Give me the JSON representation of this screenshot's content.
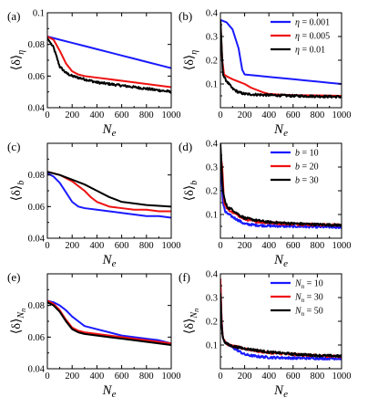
{
  "chart_data": [
    {
      "panel": "(a)",
      "type": "line",
      "ylabel": "⟨δ⟩",
      "ysub": "η",
      "xlabel": "Ne",
      "xlim": [
        0,
        1000
      ],
      "ylim": [
        0.04,
        0.1
      ],
      "xticks": [
        "0",
        "200",
        "400",
        "600",
        "800",
        "1000"
      ],
      "yticks": [
        "0.04",
        "0.06",
        "0.08",
        "0.1"
      ],
      "series": [
        {
          "color": "#1a1aff",
          "x": [
            0,
            100,
            200,
            300,
            400,
            500,
            600,
            700,
            800,
            900,
            1000
          ],
          "y": [
            0.085,
            0.083,
            0.081,
            0.079,
            0.077,
            0.075,
            0.073,
            0.071,
            0.069,
            0.067,
            0.065
          ]
        },
        {
          "color": "#ee1111",
          "x": [
            0,
            50,
            100,
            150,
            200,
            250,
            300,
            400,
            500,
            600,
            700,
            800,
            900,
            1000
          ],
          "y": [
            0.085,
            0.083,
            0.076,
            0.068,
            0.063,
            0.061,
            0.06,
            0.059,
            0.058,
            0.057,
            0.056,
            0.055,
            0.054,
            0.053
          ]
        },
        {
          "color": "#000000",
          "x": [
            0,
            50,
            100,
            150,
            200,
            300,
            400,
            500,
            600,
            700,
            800,
            900,
            1000
          ],
          "y": [
            0.084,
            0.078,
            0.066,
            0.062,
            0.06,
            0.058,
            0.056,
            0.055,
            0.054,
            0.053,
            0.052,
            0.051,
            0.05
          ],
          "noisy": true
        }
      ]
    },
    {
      "panel": "(b)",
      "type": "line",
      "ylabel": "⟨δ⟩",
      "ysub": "η",
      "xlabel": "Ne",
      "xlim": [
        0,
        1000
      ],
      "ylim": [
        0,
        0.4
      ],
      "xticks": [
        "0",
        "200",
        "400",
        "600",
        "800",
        "1000"
      ],
      "yticks": [
        "0.1",
        "0.2",
        "0.3",
        "0.4"
      ],
      "legend": {
        "position": "top-right",
        "entries": [
          "η = 0.001",
          "η = 0.005",
          "η = 0.01"
        ]
      },
      "series": [
        {
          "name": "η = 0.001",
          "color": "#1a1aff",
          "x": [
            0,
            50,
            100,
            150,
            180,
            200,
            300,
            400,
            500,
            600,
            700,
            800,
            900,
            1000
          ],
          "y": [
            0.37,
            0.36,
            0.33,
            0.25,
            0.16,
            0.14,
            0.135,
            0.13,
            0.125,
            0.12,
            0.115,
            0.11,
            0.105,
            0.1
          ]
        },
        {
          "name": "η = 0.005",
          "color": "#ee1111",
          "x": [
            0,
            15,
            30,
            60,
            100,
            150,
            200,
            250,
            300,
            350,
            400,
            500,
            600,
            800,
            1000
          ],
          "y": [
            0.37,
            0.2,
            0.14,
            0.13,
            0.12,
            0.11,
            0.1,
            0.085,
            0.075,
            0.065,
            0.058,
            0.055,
            0.053,
            0.052,
            0.05
          ]
        },
        {
          "name": "η = 0.01",
          "color": "#000000",
          "x": [
            0,
            20,
            40,
            70,
            100,
            150,
            200,
            300,
            400,
            600,
            800,
            1000
          ],
          "y": [
            0.37,
            0.14,
            0.12,
            0.1,
            0.08,
            0.065,
            0.058,
            0.055,
            0.053,
            0.05,
            0.048,
            0.046
          ],
          "noisy": true
        }
      ]
    },
    {
      "panel": "(c)",
      "type": "line",
      "ylabel": "⟨δ⟩",
      "ysub": "b",
      "xlabel": "Ne",
      "xlim": [
        0,
        1000
      ],
      "ylim": [
        0.04,
        0.1
      ],
      "xticks": [
        "0",
        "200",
        "400",
        "600",
        "800",
        "1000"
      ],
      "yticks": [
        "0.04",
        "0.06",
        "0.08"
      ],
      "series": [
        {
          "color": "#1a1aff",
          "x": [
            0,
            50,
            100,
            150,
            200,
            250,
            300,
            400,
            500,
            600,
            700,
            800,
            900,
            1000
          ],
          "y": [
            0.081,
            0.079,
            0.075,
            0.069,
            0.063,
            0.06,
            0.059,
            0.058,
            0.057,
            0.056,
            0.055,
            0.054,
            0.054,
            0.053
          ]
        },
        {
          "color": "#ee1111",
          "x": [
            0,
            100,
            200,
            250,
            300,
            350,
            400,
            500,
            600,
            700,
            800,
            900,
            1000
          ],
          "y": [
            0.082,
            0.08,
            0.076,
            0.073,
            0.07,
            0.066,
            0.063,
            0.06,
            0.059,
            0.058,
            0.058,
            0.057,
            0.057
          ]
        },
        {
          "color": "#000000",
          "x": [
            0,
            100,
            200,
            300,
            400,
            500,
            600,
            700,
            800,
            900,
            1000
          ],
          "y": [
            0.082,
            0.08,
            0.077,
            0.074,
            0.07,
            0.066,
            0.063,
            0.062,
            0.061,
            0.0605,
            0.06
          ]
        }
      ]
    },
    {
      "panel": "(d)",
      "type": "line",
      "ylabel": "⟨δ⟩",
      "ysub": "b",
      "xlabel": "Ne",
      "xlim": [
        0,
        1000
      ],
      "ylim": [
        0,
        0.4
      ],
      "xticks": [
        "0",
        "200",
        "400",
        "600",
        "800",
        "1000"
      ],
      "yticks": [
        "0.1",
        "0.2",
        "0.3",
        "0.4"
      ],
      "legend": {
        "position": "top-right",
        "entries": [
          "b = 10",
          "b = 20",
          "b = 30"
        ]
      },
      "series": [
        {
          "name": "b = 10",
          "color": "#1a1aff",
          "x": [
            0,
            10,
            20,
            40,
            70,
            100,
            150,
            200,
            300,
            400,
            600,
            800,
            1000
          ],
          "y": [
            0.36,
            0.25,
            0.15,
            0.11,
            0.1,
            0.09,
            0.075,
            0.06,
            0.055,
            0.052,
            0.05,
            0.048,
            0.046
          ],
          "noisy": true
        },
        {
          "name": "b = 20",
          "color": "#ee1111",
          "x": [
            0,
            15,
            30,
            60,
            100,
            150,
            200,
            300,
            400,
            600,
            800,
            1000
          ],
          "y": [
            0.36,
            0.3,
            0.15,
            0.12,
            0.11,
            0.095,
            0.08,
            0.07,
            0.065,
            0.06,
            0.057,
            0.055
          ],
          "noisy": true
        },
        {
          "name": "b = 30",
          "color": "#000000",
          "x": [
            0,
            10,
            20,
            40,
            60,
            100,
            150,
            200,
            300,
            400,
            600,
            800,
            1000
          ],
          "y": [
            0.4,
            0.3,
            0.2,
            0.15,
            0.13,
            0.12,
            0.1,
            0.085,
            0.075,
            0.068,
            0.062,
            0.058,
            0.055
          ],
          "noisy": true
        }
      ]
    },
    {
      "panel": "(e)",
      "type": "line",
      "ylabel": "⟨δ⟩",
      "ysub": "Nn",
      "xlabel": "Ne",
      "xlim": [
        0,
        1000
      ],
      "ylim": [
        0.04,
        0.1
      ],
      "xticks": [
        "0",
        "200",
        "400",
        "600",
        "800",
        "1000"
      ],
      "yticks": [
        "0.04",
        "0.06",
        "0.08"
      ],
      "series": [
        {
          "color": "#1a1aff",
          "x": [
            0,
            50,
            100,
            150,
            200,
            250,
            300,
            350,
            400,
            500,
            600,
            700,
            800,
            900,
            1000
          ],
          "y": [
            0.083,
            0.082,
            0.08,
            0.077,
            0.073,
            0.07,
            0.067,
            0.066,
            0.065,
            0.063,
            0.061,
            0.06,
            0.059,
            0.058,
            0.056
          ]
        },
        {
          "color": "#ee1111",
          "x": [
            0,
            50,
            100,
            150,
            200,
            250,
            300,
            400,
            500,
            600,
            700,
            800,
            900,
            1000
          ],
          "y": [
            0.083,
            0.081,
            0.077,
            0.071,
            0.066,
            0.064,
            0.063,
            0.062,
            0.061,
            0.06,
            0.059,
            0.058,
            0.057,
            0.056
          ]
        },
        {
          "color": "#000000",
          "x": [
            0,
            50,
            100,
            150,
            200,
            250,
            300,
            400,
            500,
            600,
            700,
            800,
            900,
            1000
          ],
          "y": [
            0.082,
            0.08,
            0.076,
            0.07,
            0.065,
            0.063,
            0.062,
            0.061,
            0.06,
            0.059,
            0.058,
            0.057,
            0.056,
            0.055
          ]
        }
      ]
    },
    {
      "panel": "(f)",
      "type": "line",
      "ylabel": "⟨δ⟩",
      "ysub": "Nn",
      "xlabel": "Ne",
      "xlim": [
        0,
        1000
      ],
      "ylim": [
        0,
        0.4
      ],
      "xticks": [
        "0",
        "200",
        "400",
        "600",
        "800",
        "1000"
      ],
      "yticks": [
        "0.1",
        "0.2",
        "0.3",
        "0.4"
      ],
      "legend": {
        "position": "top-right",
        "entries": [
          "Nn = 10",
          "Nn = 30",
          "Nn = 50"
        ]
      },
      "series": [
        {
          "name": "Nn = 10",
          "color": "#1a1aff",
          "x": [
            0,
            10,
            20,
            40,
            70,
            100,
            150,
            200,
            300,
            400,
            600,
            800,
            1000
          ],
          "y": [
            0.36,
            0.2,
            0.13,
            0.11,
            0.1,
            0.09,
            0.075,
            0.06,
            0.052,
            0.048,
            0.045,
            0.044,
            0.043
          ],
          "noisy": true
        },
        {
          "name": "Nn = 30",
          "color": "#ee1111",
          "x": [
            0,
            10,
            20,
            40,
            70,
            100,
            200,
            300,
            400,
            600,
            800,
            1000
          ],
          "y": [
            0.38,
            0.2,
            0.13,
            0.11,
            0.1,
            0.095,
            0.085,
            0.075,
            0.068,
            0.06,
            0.055,
            0.052
          ],
          "noisy": true
        },
        {
          "name": "Nn = 50",
          "color": "#000000",
          "x": [
            0,
            10,
            20,
            40,
            70,
            100,
            200,
            300,
            400,
            600,
            800,
            1000
          ],
          "y": [
            0.32,
            0.18,
            0.13,
            0.11,
            0.1,
            0.095,
            0.085,
            0.078,
            0.07,
            0.062,
            0.056,
            0.053
          ],
          "noisy": true
        }
      ]
    }
  ]
}
